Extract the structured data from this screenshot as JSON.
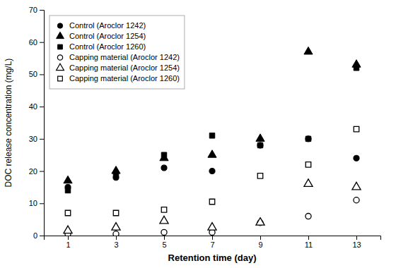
{
  "chart_data": {
    "type": "scatter",
    "xlabel": "Retention time (day)",
    "ylabel": "DOC release concentration (mg/L)",
    "x": [
      1,
      3,
      5,
      7,
      9,
      11,
      13
    ],
    "series": [
      {
        "name": "Control (Aroclor 1242)",
        "color": "black",
        "marker": "circle",
        "values": [
          15,
          18,
          21,
          20,
          28,
          30,
          24
        ]
      },
      {
        "name": "Control (Aroclor 1254)",
        "color": "black",
        "marker": "triangle",
        "values": [
          17,
          20,
          24,
          25,
          30,
          57,
          53
        ]
      },
      {
        "name": "Control (Aroclor 1260)",
        "color": "black",
        "marker": "square",
        "values": [
          14,
          19,
          25,
          31,
          28,
          30,
          52
        ]
      },
      {
        "name": "Capping material (Aroclor 1242)",
        "color": "black",
        "marker": "circle-open",
        "values": [
          0.5,
          0.5,
          1,
          1,
          4,
          6,
          11
        ]
      },
      {
        "name": "Capping material (Aroclor 1254)",
        "color": "black",
        "marker": "triangle-open",
        "values": [
          1.5,
          2.5,
          4.5,
          2.5,
          4,
          16,
          15
        ]
      },
      {
        "name": "Capping material (Aroclor 1260)",
        "color": "black",
        "marker": "square-open",
        "values": [
          7,
          7,
          8,
          10.5,
          18.5,
          22,
          33
        ]
      }
    ],
    "xlim": [
      0,
      14
    ],
    "xticks": [
      1,
      3,
      5,
      7,
      9,
      11,
      13
    ],
    "ylim": [
      0,
      70
    ],
    "yticks": [
      0,
      10,
      20,
      30,
      40,
      50,
      60,
      70
    ],
    "grid": false,
    "legend": "upper left"
  }
}
